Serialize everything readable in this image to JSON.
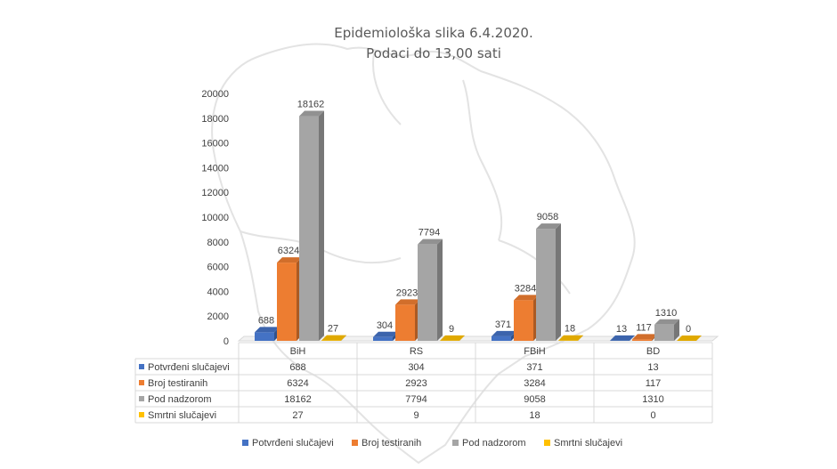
{
  "chart_data": {
    "type": "bar",
    "title": "Epidemiološka slika 6.4.2020.",
    "subtitle": "Podaci do 13,00 sati",
    "categories": [
      "BiH",
      "RS",
      "FBiH",
      "BD"
    ],
    "ylim": [
      0,
      20000
    ],
    "yticks": [
      0,
      2000,
      4000,
      6000,
      8000,
      10000,
      12000,
      14000,
      16000,
      18000,
      20000
    ],
    "grid": false,
    "legend": "bottom",
    "series": [
      {
        "name": "Potvrđeni slučajevi",
        "color": "#4472c4",
        "values": [
          688,
          304,
          371,
          13
        ]
      },
      {
        "name": "Broj testiranih",
        "color": "#ed7d31",
        "values": [
          6324,
          2923,
          3284,
          117
        ]
      },
      {
        "name": "Pod nadzorom",
        "color": "#a5a5a5",
        "values": [
          18162,
          7794,
          9058,
          1310
        ]
      },
      {
        "name": "Smrtni slučajevi",
        "color": "#ffc000",
        "values": [
          27,
          9,
          18,
          0
        ]
      }
    ]
  }
}
